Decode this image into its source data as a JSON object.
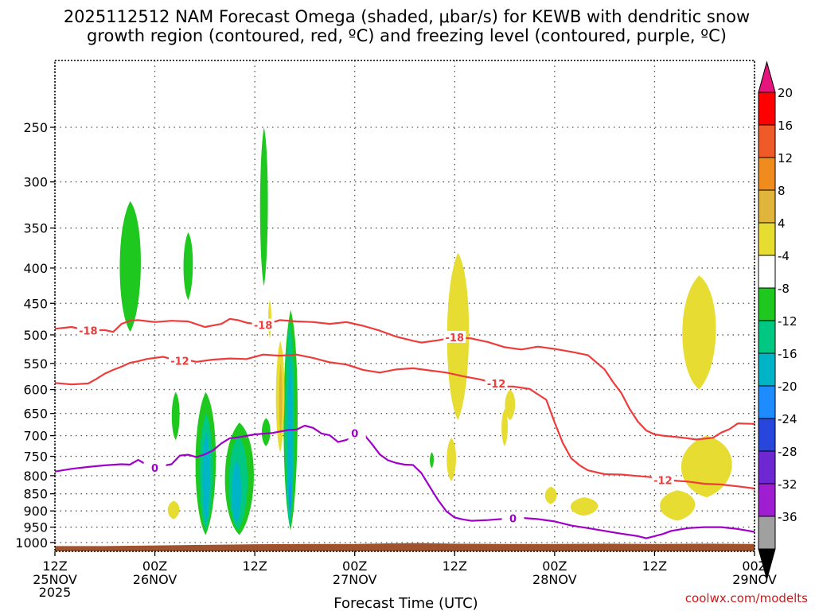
{
  "chart_data": {
    "type": "time-height",
    "title_line1": "2025112512 NAM Forecast Omega (shaded, μbar/s) for KEWB with dendritic snow",
    "title_line2": "growth region (contoured, red, ºC) and freezing level (contoured, purple, ºC)",
    "xlabel": "Forecast Time (UTC)",
    "credit": "coolwx.com/modelts",
    "y_axis": {
      "unit": "hPa",
      "range": [
        1030,
        200
      ],
      "ticks": [
        250,
        300,
        350,
        400,
        450,
        500,
        550,
        600,
        650,
        700,
        750,
        800,
        850,
        900,
        950,
        1000
      ]
    },
    "x_axis": {
      "unit": "forecast hour",
      "range": [
        0,
        84
      ],
      "ticks": [
        {
          "h": 0,
          "l1": "12Z",
          "l2": "25NOV",
          "l3": "2025"
        },
        {
          "h": 12,
          "l1": "00Z",
          "l2": "26NOV",
          "l3": ""
        },
        {
          "h": 24,
          "l1": "12Z",
          "l2": "",
          "l3": ""
        },
        {
          "h": 36,
          "l1": "00Z",
          "l2": "27NOV",
          "l3": ""
        },
        {
          "h": 48,
          "l1": "12Z",
          "l2": "",
          "l3": ""
        },
        {
          "h": 60,
          "l1": "00Z",
          "l2": "28NOV",
          "l3": ""
        },
        {
          "h": 72,
          "l1": "12Z",
          "l2": "",
          "l3": ""
        },
        {
          "h": 84,
          "l1": "00Z",
          "l2": "29NOV",
          "l3": ""
        }
      ]
    },
    "colorbar": {
      "labels": [
        "20",
        "16",
        "12",
        "8",
        "4",
        "-4",
        "-8",
        "-12",
        "-16",
        "-20",
        "-24",
        "-28",
        "-32",
        "-36"
      ],
      "bins": [
        {
          "color": "#ff0000"
        },
        {
          "color": "#f05a28"
        },
        {
          "color": "#f08c1e"
        },
        {
          "color": "#e1b43c"
        },
        {
          "color": "#e6dc32"
        },
        {
          "color": "#ffffff"
        },
        {
          "color": "#1ec81e"
        },
        {
          "color": "#00c882"
        },
        {
          "color": "#00b4c8"
        },
        {
          "color": "#1e8cff"
        },
        {
          "color": "#2846dc"
        },
        {
          "color": "#6e28d2"
        },
        {
          "color": "#a01ed2"
        },
        {
          "color": "#a0a0a0"
        }
      ],
      "top_color": "#e6147d",
      "bottom_color": "#000000"
    },
    "contours": [
      {
        "name": "-18C",
        "color": "#ee3b3b",
        "label": "-18",
        "points": [
          [
            0,
            490
          ],
          [
            2,
            487
          ],
          [
            4,
            493
          ],
          [
            6,
            492
          ],
          [
            7,
            495
          ],
          [
            8,
            482
          ],
          [
            9,
            477
          ],
          [
            10,
            476
          ],
          [
            12,
            479
          ],
          [
            14,
            477
          ],
          [
            16,
            478
          ],
          [
            18,
            487
          ],
          [
            20,
            482
          ],
          [
            21,
            474
          ],
          [
            22,
            476
          ],
          [
            23,
            480
          ],
          [
            25,
            484
          ],
          [
            27,
            476
          ],
          [
            29,
            478
          ],
          [
            31,
            479
          ],
          [
            33,
            482
          ],
          [
            35,
            479
          ],
          [
            37,
            485
          ],
          [
            39,
            493
          ],
          [
            41,
            503
          ],
          [
            43,
            510
          ],
          [
            44,
            513
          ],
          [
            46,
            509
          ],
          [
            48,
            504
          ],
          [
            50,
            506
          ],
          [
            52,
            512
          ],
          [
            54,
            521
          ],
          [
            56,
            525
          ],
          [
            58,
            520
          ],
          [
            60,
            524
          ],
          [
            62,
            529
          ],
          [
            64,
            535
          ],
          [
            66,
            561
          ],
          [
            67,
            585
          ],
          [
            68,
            607
          ],
          [
            69,
            640
          ],
          [
            70,
            668
          ],
          [
            71,
            688
          ],
          [
            72,
            697
          ],
          [
            73,
            700
          ],
          [
            75,
            704
          ],
          [
            77,
            709
          ],
          [
            79,
            705
          ],
          [
            80,
            693
          ],
          [
            81,
            685
          ],
          [
            82,
            672
          ],
          [
            84,
            673
          ]
        ],
        "labels_at": [
          [
            4,
            493
          ],
          [
            25,
            484
          ],
          [
            48,
            504
          ]
        ]
      },
      {
        "name": "-12C",
        "color": "#ee3b3b",
        "label": "-12",
        "points": [
          [
            0,
            587
          ],
          [
            2,
            590
          ],
          [
            4,
            588
          ],
          [
            5,
            579
          ],
          [
            6,
            569
          ],
          [
            7,
            562
          ],
          [
            8,
            556
          ],
          [
            9,
            549
          ],
          [
            10,
            546
          ],
          [
            11,
            542
          ],
          [
            12,
            540
          ],
          [
            13,
            538
          ],
          [
            14,
            542
          ],
          [
            15,
            545
          ],
          [
            16,
            544
          ],
          [
            17,
            547
          ],
          [
            18,
            545
          ],
          [
            19,
            543
          ],
          [
            21,
            541
          ],
          [
            23,
            542
          ],
          [
            25,
            534
          ],
          [
            27,
            536
          ],
          [
            29,
            534
          ],
          [
            31,
            540
          ],
          [
            33,
            548
          ],
          [
            35,
            552
          ],
          [
            37,
            562
          ],
          [
            39,
            567
          ],
          [
            41,
            561
          ],
          [
            43,
            559
          ],
          [
            45,
            563
          ],
          [
            47,
            567
          ],
          [
            49,
            574
          ],
          [
            51,
            580
          ],
          [
            53,
            588
          ],
          [
            54,
            594
          ],
          [
            55,
            594
          ],
          [
            57,
            599
          ],
          [
            59,
            621
          ],
          [
            60,
            670
          ],
          [
            61,
            718
          ],
          [
            62,
            755
          ],
          [
            63,
            773
          ],
          [
            64,
            786
          ],
          [
            66,
            796
          ],
          [
            68,
            797
          ],
          [
            70,
            801
          ],
          [
            72,
            805
          ],
          [
            74,
            813
          ],
          [
            76,
            816
          ],
          [
            78,
            822
          ],
          [
            80,
            824
          ],
          [
            82,
            829
          ],
          [
            84,
            835
          ]
        ],
        "labels_at": [
          [
            15,
            545
          ],
          [
            53,
            588
          ],
          [
            73,
            812
          ]
        ]
      },
      {
        "name": "0C",
        "color": "#a000c8",
        "label": "0",
        "points": [
          [
            0,
            789
          ],
          [
            2,
            782
          ],
          [
            4,
            777
          ],
          [
            6,
            773
          ],
          [
            8,
            770
          ],
          [
            9,
            771
          ],
          [
            10,
            759
          ],
          [
            11,
            771
          ],
          [
            12,
            779
          ],
          [
            13,
            774
          ],
          [
            14,
            770
          ],
          [
            15,
            748
          ],
          [
            16,
            746
          ],
          [
            17,
            752
          ],
          [
            18,
            745
          ],
          [
            19,
            735
          ],
          [
            20,
            718
          ],
          [
            21,
            706
          ],
          [
            22,
            704
          ],
          [
            24,
            697
          ],
          [
            26,
            694
          ],
          [
            28,
            687
          ],
          [
            29,
            686
          ],
          [
            30,
            677
          ],
          [
            31,
            682
          ],
          [
            32,
            695
          ],
          [
            33,
            699
          ],
          [
            34,
            715
          ],
          [
            35,
            710
          ],
          [
            36,
            694
          ],
          [
            37,
            695
          ],
          [
            38,
            718
          ],
          [
            39,
            745
          ],
          [
            40,
            760
          ],
          [
            41,
            767
          ],
          [
            42,
            771
          ],
          [
            43,
            772
          ],
          [
            44,
            793
          ],
          [
            45,
            830
          ],
          [
            46,
            868
          ],
          [
            47,
            901
          ],
          [
            48,
            920
          ],
          [
            49,
            926
          ],
          [
            50,
            930
          ],
          [
            52,
            928
          ],
          [
            54,
            924
          ],
          [
            56,
            921
          ],
          [
            58,
            925
          ],
          [
            60,
            932
          ],
          [
            62,
            945
          ],
          [
            64,
            953
          ],
          [
            66,
            962
          ],
          [
            68,
            971
          ],
          [
            70,
            979
          ],
          [
            71,
            986
          ],
          [
            72,
            979
          ],
          [
            73,
            972
          ],
          [
            74,
            962
          ],
          [
            76,
            953
          ],
          [
            78,
            950
          ],
          [
            80,
            950
          ],
          [
            82,
            956
          ],
          [
            84,
            965
          ]
        ],
        "labels_at": [
          [
            12,
            779
          ],
          [
            36,
            694
          ],
          [
            55,
            922
          ]
        ]
      }
    ],
    "omega_regions": [
      {
        "color": "#1ec81e",
        "bin": "-8 to -4",
        "t0": 7.7,
        "t1": 10.4,
        "p0": 320,
        "p1": 495
      },
      {
        "color": "#1ec81e",
        "bin": "-8 to -4",
        "t0": 15.4,
        "t1": 16.6,
        "p0": 355,
        "p1": 445
      },
      {
        "color": "#1ec81e",
        "bin": "-8 to -4",
        "t0": 24.6,
        "t1": 25.6,
        "p0": 250,
        "p1": 425
      },
      {
        "color": "#1ec81e",
        "bin": "-8 to -4",
        "t0": 14.0,
        "t1": 15.0,
        "p0": 605,
        "p1": 710
      },
      {
        "color": "#1ec81e",
        "bin": "-8 to -4",
        "t0": 16.8,
        "t1": 19.4,
        "p0": 605,
        "p1": 975
      },
      {
        "color": "#00c882",
        "bin": "-12 to -8",
        "t0": 17.3,
        "t1": 19.0,
        "p0": 650,
        "p1": 960
      },
      {
        "color": "#00b4c8",
        "bin": "-16 to -12",
        "t0": 17.7,
        "t1": 18.6,
        "p0": 690,
        "p1": 940
      },
      {
        "color": "#1ec81e",
        "bin": "-8 to -4",
        "t0": 20.3,
        "t1": 24.0,
        "p0": 670,
        "p1": 975
      },
      {
        "color": "#00c882",
        "bin": "-12 to -8",
        "t0": 20.8,
        "t1": 23.2,
        "p0": 700,
        "p1": 960
      },
      {
        "color": "#00b4c8",
        "bin": "-16 to -12",
        "t0": 21.2,
        "t1": 22.4,
        "p0": 760,
        "p1": 940
      },
      {
        "color": "#1ec81e",
        "bin": "-8 to -4",
        "t0": 24.8,
        "t1": 25.9,
        "p0": 660,
        "p1": 725
      },
      {
        "color": "#1ec81e",
        "bin": "-8 to -4",
        "t0": 27.4,
        "t1": 29.2,
        "p0": 460,
        "p1": 960
      },
      {
        "color": "#00c882",
        "bin": "-12 to -8",
        "t0": 27.6,
        "t1": 28.8,
        "p0": 480,
        "p1": 950
      },
      {
        "color": "#00b4c8",
        "bin": "-16 to -12",
        "t0": 27.9,
        "t1": 28.6,
        "p0": 540,
        "p1": 930
      },
      {
        "color": "#1e8cff",
        "bin": "-20 to -16",
        "t0": 28.1,
        "t1": 28.4,
        "p0": 820,
        "p1": 900
      },
      {
        "color": "#1ec81e",
        "bin": "-8 to -4",
        "t0": 45.0,
        "t1": 45.5,
        "p0": 740,
        "p1": 780
      },
      {
        "color": "#e6dc32",
        "bin": "4 to 8",
        "t0": 25.6,
        "t1": 26.0,
        "p0": 445,
        "p1": 505
      },
      {
        "color": "#e6dc32",
        "bin": "4 to 8",
        "t0": 26.5,
        "t1": 27.6,
        "p0": 510,
        "p1": 740
      },
      {
        "color": "#e1b43c",
        "bin": "8 to 12",
        "t0": 26.9,
        "t1": 27.3,
        "p0": 550,
        "p1": 700
      },
      {
        "color": "#e6dc32",
        "bin": "4 to 8",
        "t0": 47.0,
        "t1": 49.8,
        "p0": 380,
        "p1": 665
      },
      {
        "color": "#e6dc32",
        "bin": "4 to 8",
        "t0": 47.0,
        "t1": 48.2,
        "p0": 705,
        "p1": 815
      },
      {
        "color": "#e6dc32",
        "bin": "4 to 8",
        "t0": 53.6,
        "t1": 54.4,
        "p0": 640,
        "p1": 725
      },
      {
        "color": "#e6dc32",
        "bin": "4 to 8",
        "t0": 54.0,
        "t1": 55.3,
        "p0": 600,
        "p1": 665
      },
      {
        "color": "#e6dc32",
        "bin": "4 to 8",
        "t0": 58.8,
        "t1": 60.3,
        "p0": 830,
        "p1": 880
      },
      {
        "color": "#e6dc32",
        "bin": "4 to 8",
        "t0": 61.8,
        "t1": 65.3,
        "p0": 860,
        "p1": 915
      },
      {
        "color": "#e6dc32",
        "bin": "4 to 8",
        "t0": 13.5,
        "t1": 15.0,
        "p0": 870,
        "p1": 925
      },
      {
        "color": "#e6dc32",
        "bin": "4 to 8",
        "t0": 75.2,
        "t1": 79.5,
        "p0": 410,
        "p1": 600
      },
      {
        "color": "#e6dc32",
        "bin": "4 to 8",
        "t0": 72.5,
        "t1": 77.0,
        "p0": 840,
        "p1": 930
      },
      {
        "color": "#e6dc32",
        "bin": "4 to 8",
        "t0": 75.0,
        "t1": 81.5,
        "p0": 700,
        "p1": 860
      }
    ],
    "terrain": {
      "color": "#a0522d",
      "points": [
        [
          0,
          1030
        ],
        [
          0,
          1012
        ],
        [
          6,
          1012
        ],
        [
          12,
          1010
        ],
        [
          18,
          1008
        ],
        [
          24,
          1006
        ],
        [
          30,
          1005
        ],
        [
          36,
          1005
        ],
        [
          40,
          1003
        ],
        [
          44,
          1002
        ],
        [
          48,
          1004
        ],
        [
          54,
          1005
        ],
        [
          60,
          1005
        ],
        [
          66,
          1004
        ],
        [
          72,
          1005
        ],
        [
          78,
          1004
        ],
        [
          84,
          1005
        ],
        [
          84,
          1030
        ]
      ]
    }
  }
}
